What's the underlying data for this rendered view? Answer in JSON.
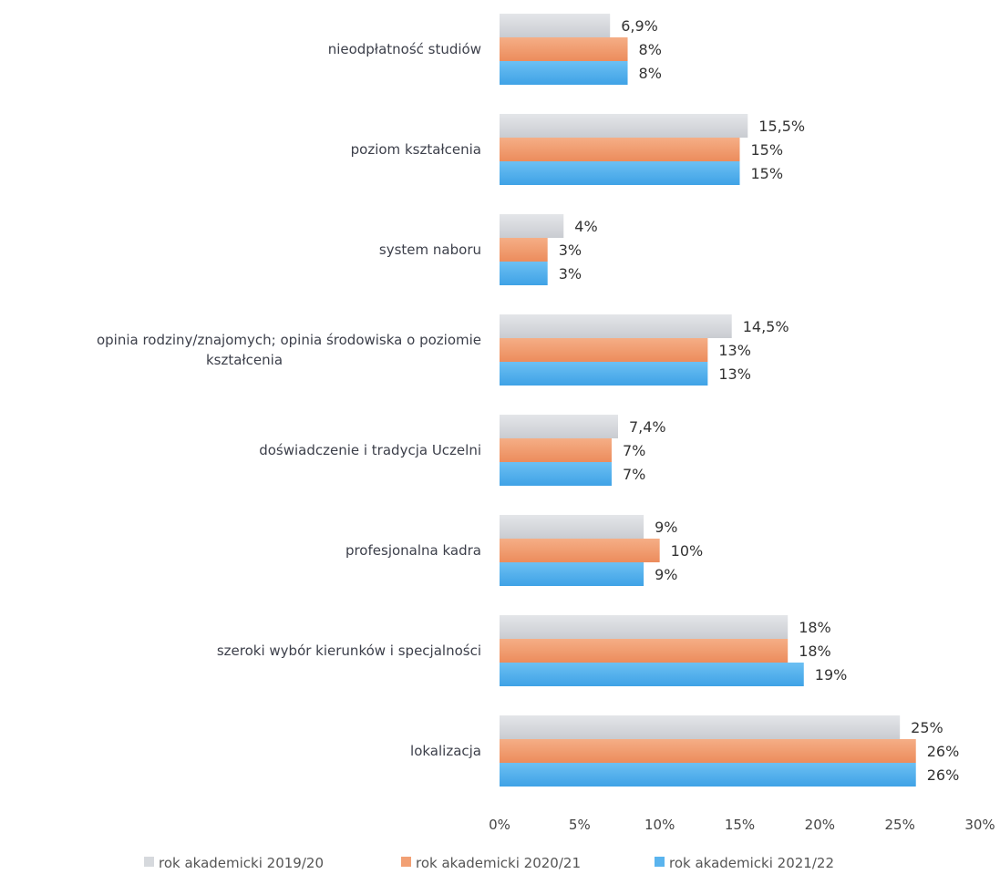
{
  "chart_data": {
    "type": "bar",
    "orientation": "horizontal",
    "categories": [
      [
        "nieodpłatność studiów"
      ],
      [
        "poziom kształcenia"
      ],
      [
        "system naboru"
      ],
      [
        "opinia rodziny/znajomych; opinia środowiska o poziomie",
        "kształcenia"
      ],
      [
        "doświadczenie i tradycja Uczelni"
      ],
      [
        "profesjonalna kadra"
      ],
      [
        "szeroki wybór kierunków i specjalności"
      ],
      [
        "lokalizacja"
      ]
    ],
    "series": [
      {
        "name": "rok akademicki 2019/20",
        "color": "#d6d9dd",
        "values": [
          6.9,
          15.5,
          4,
          14.5,
          7.4,
          9,
          18,
          25
        ],
        "labels": [
          "6,9%",
          "15,5%",
          "4%",
          "14,5%",
          "7,4%",
          "9%",
          "18%",
          "25%"
        ]
      },
      {
        "name": "rok akademicki 2020/21",
        "color": "#f2a074",
        "values": [
          8,
          15,
          3,
          13,
          7,
          10,
          18,
          26
        ],
        "labels": [
          "8%",
          "15%",
          "3%",
          "13%",
          "7%",
          "10%",
          "18%",
          "26%"
        ]
      },
      {
        "name": "rok akademicki 2021/22",
        "color": "#5ab4ee",
        "values": [
          8,
          15,
          3,
          13,
          7,
          9,
          19,
          26
        ],
        "labels": [
          "8%",
          "15%",
          "3%",
          "13%",
          "7%",
          "9%",
          "19%",
          "26%"
        ]
      }
    ],
    "xlim": [
      0,
      30
    ],
    "xticks": [
      0,
      5,
      10,
      15,
      20,
      25,
      30
    ],
    "xtick_labels": [
      "0%",
      "5%",
      "10%",
      "15%",
      "20%",
      "25%",
      "30%"
    ],
    "grid": false,
    "legend": "bottom"
  }
}
